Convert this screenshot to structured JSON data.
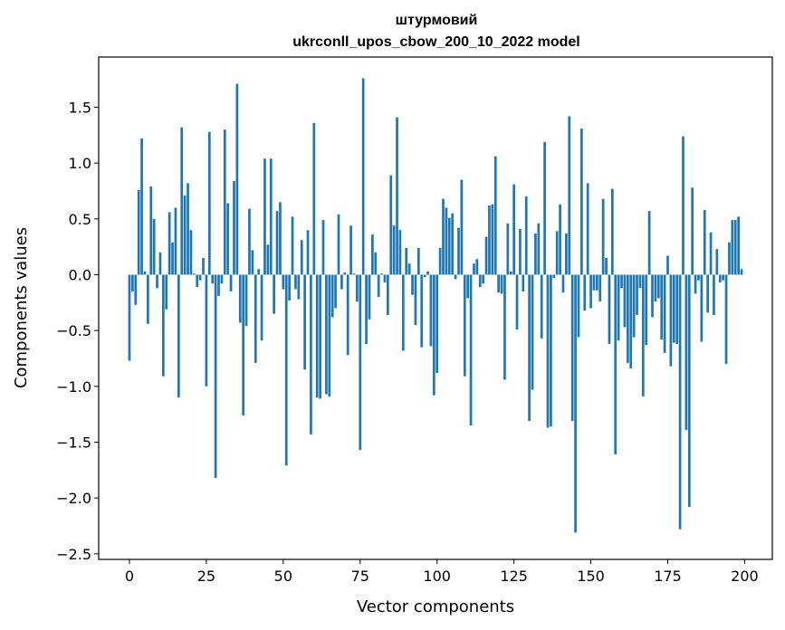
{
  "chart_data": {
    "type": "bar",
    "title_line1": "штурмовий",
    "title_line2": "ukrconll_upos_cbow_200_10_2022 model",
    "xlabel": "Vector components",
    "ylabel": "Components values",
    "xlim": [
      -10,
      209
    ],
    "ylim": [
      -2.55,
      1.95
    ],
    "xticks": [
      0,
      25,
      50,
      75,
      100,
      125,
      150,
      175,
      200
    ],
    "yticks": [
      -2.5,
      -2.0,
      -1.5,
      -1.0,
      -0.5,
      0.0,
      0.5,
      1.0,
      1.5
    ],
    "ytick_labels": [
      "−2.5",
      "−2.0",
      "−1.5",
      "−1.0",
      "−0.5",
      "0.0",
      "0.5",
      "1.0",
      "1.5"
    ],
    "bar_color": "#1f77b4",
    "values": [
      -0.77,
      -0.15,
      -0.27,
      0.76,
      1.22,
      0.03,
      -0.44,
      0.79,
      0.5,
      -0.12,
      0.2,
      -0.91,
      -0.31,
      0.56,
      0.29,
      0.6,
      -1.1,
      1.32,
      0.71,
      0.82,
      0.4,
      0.01,
      -0.11,
      -0.05,
      0.15,
      -1.0,
      1.28,
      -0.08,
      -1.82,
      -0.19,
      -0.08,
      1.3,
      0.64,
      -0.15,
      0.84,
      1.71,
      -0.43,
      -1.26,
      -0.46,
      0.59,
      0.22,
      -0.79,
      0.05,
      -0.59,
      1.04,
      0.27,
      1.04,
      -0.35,
      0.57,
      0.65,
      -0.13,
      -1.71,
      -0.23,
      0.52,
      -0.13,
      -0.22,
      0.31,
      -0.85,
      0.4,
      -1.43,
      1.36,
      -1.1,
      -1.11,
      0.49,
      -1.07,
      -1.09,
      -0.38,
      -0.3,
      0.54,
      -0.13,
      0.02,
      -0.72,
      0.44,
      0.01,
      -0.24,
      -1.57,
      1.76,
      -0.62,
      -0.4,
      0.36,
      0.2,
      -0.2,
      0.01,
      -0.07,
      -0.36,
      0.89,
      0.44,
      1.41,
      0.4,
      -0.68,
      0.24,
      0.1,
      -0.18,
      -0.45,
      0.24,
      -0.65,
      -0.02,
      0.03,
      -0.64,
      -1.08,
      -0.88,
      0.24,
      0.68,
      0.6,
      0.51,
      0.55,
      -0.04,
      0.42,
      0.85,
      -0.91,
      -0.21,
      -1.35,
      0.1,
      0.14,
      -0.11,
      -0.08,
      0.34,
      0.62,
      0.63,
      1.06,
      -0.16,
      -0.17,
      -0.94,
      0.46,
      0.03,
      0.81,
      -0.49,
      0.41,
      -0.15,
      0.7,
      -1.31,
      -1.03,
      0.37,
      0.46,
      -0.57,
      1.19,
      -1.37,
      -1.36,
      -0.03,
      0.39,
      0.63,
      -0.16,
      0.37,
      1.42,
      -1.31,
      -2.31,
      -0.56,
      1.31,
      -0.32,
      0.82,
      -0.3,
      -0.14,
      -0.14,
      -0.24,
      0.68,
      0.15,
      -0.62,
      0.77,
      -1.61,
      -0.59,
      -0.12,
      -0.47,
      -0.79,
      -0.84,
      -0.56,
      -0.36,
      -0.12,
      -1.09,
      -0.63,
      0.57,
      -0.38,
      -0.24,
      -0.21,
      -0.58,
      -0.7,
      0.17,
      -0.82,
      -0.61,
      -0.62,
      -2.28,
      1.24,
      -1.39,
      -2.08,
      0.78,
      -0.17,
      -0.05,
      -0.6,
      0.58,
      -0.34,
      0.38,
      -0.36,
      0.23,
      -0.07,
      -0.05,
      -0.8,
      0.29,
      0.49,
      0.49,
      0.52,
      0.05
    ]
  }
}
